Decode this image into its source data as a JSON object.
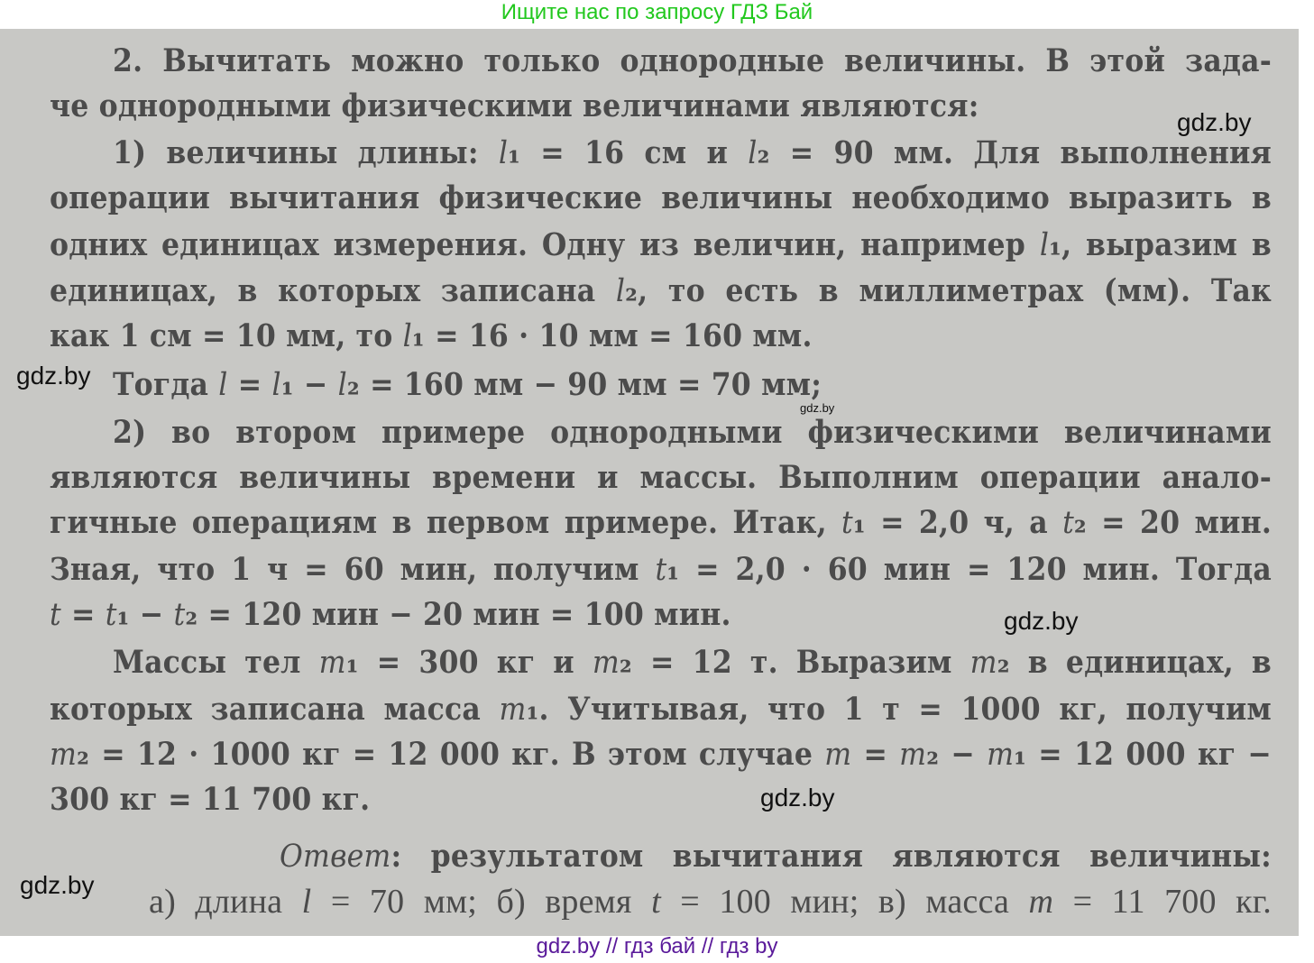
{
  "top_banner": "Ищите нас по запросу ГДЗ Бай",
  "bottom_banner": "gdz.by  //  гдз бай  //  гдз by",
  "watermark": "gdz.by",
  "lines": [
    [
      {
        "t": "2. Вычитать можно только однородные величины. В этой зада-"
      }
    ],
    [
      {
        "t": "че однородными физическими величинами являются:"
      }
    ],
    [
      {
        "t": "1) величины длины: "
      },
      {
        "t": "l",
        "i": 1
      },
      {
        "t": "₁ = 16 см и "
      },
      {
        "t": "l",
        "i": 1
      },
      {
        "t": "₂ = 90 мм. Для выполнения"
      }
    ],
    [
      {
        "t": "операции вычитания физические величины необходимо выразить в"
      }
    ],
    [
      {
        "t": "одних единицах измерения. Одну из величин, например "
      },
      {
        "t": "l",
        "i": 1
      },
      {
        "t": "₁, выразим в"
      }
    ],
    [
      {
        "t": "единицах, в которых записана "
      },
      {
        "t": "l",
        "i": 1
      },
      {
        "t": "₂, то есть в миллиметрах (мм). Так"
      }
    ],
    [
      {
        "t": "как 1 см = 10 мм, то "
      },
      {
        "t": "l",
        "i": 1
      },
      {
        "t": "₁ = 16 · 10 мм = 160 мм."
      }
    ],
    [
      {
        "t": "Тогда "
      },
      {
        "t": "l",
        "i": 1
      },
      {
        "t": " = "
      },
      {
        "t": "l",
        "i": 1
      },
      {
        "t": "₁ − "
      },
      {
        "t": "l",
        "i": 1
      },
      {
        "t": "₂ = 160 мм − 90 мм = 70 мм;"
      }
    ],
    [
      {
        "t": "2) во втором примере однородными физическими величинами"
      }
    ],
    [
      {
        "t": "являются величины времени и массы. Выполним операции анало-"
      }
    ],
    [
      {
        "t": "гичные операциям в первом примере. Итак, "
      },
      {
        "t": "t",
        "i": 1
      },
      {
        "t": "₁ = 2,0 ч, а "
      },
      {
        "t": "t",
        "i": 1
      },
      {
        "t": "₂ = 20 мин."
      }
    ],
    [
      {
        "t": "Зная, что 1 ч = 60 мин, получим "
      },
      {
        "t": "t",
        "i": 1
      },
      {
        "t": "₁ = 2,0 · 60 мин = 120 мин. Тогда"
      }
    ],
    [
      {
        "t": "t",
        "i": 1
      },
      {
        "t": " = "
      },
      {
        "t": "t",
        "i": 1
      },
      {
        "t": "₁ − "
      },
      {
        "t": "t",
        "i": 1
      },
      {
        "t": "₂ = 120 мин − 20 мин = 100 мин."
      }
    ],
    [
      {
        "t": "Массы тел "
      },
      {
        "t": "m",
        "i": 1
      },
      {
        "t": "₁ = 300 кг и "
      },
      {
        "t": "m",
        "i": 1
      },
      {
        "t": "₂ = 12 т. Выразим "
      },
      {
        "t": "m",
        "i": 1
      },
      {
        "t": "₂ в единицах, в"
      }
    ],
    [
      {
        "t": "которых записана масса "
      },
      {
        "t": "m",
        "i": 1
      },
      {
        "t": "₁. Учитывая, что 1 т = 1000 кг, получим"
      }
    ],
    [
      {
        "t": "m",
        "i": 1
      },
      {
        "t": "₂ = 12 · 1000 кг = 12 000 кг. В этом случае "
      },
      {
        "t": "m",
        "i": 1
      },
      {
        "t": " = "
      },
      {
        "t": "m",
        "i": 1
      },
      {
        "t": "₂ − "
      },
      {
        "t": "m",
        "i": 1
      },
      {
        "t": "₁ = 12 000 кг −"
      }
    ],
    [
      {
        "t": "300 кг = 11 700 кг."
      }
    ],
    [
      {
        "t": "Ответ",
        "i": 1
      },
      {
        "t": ": результатом вычитания являются величины:"
      }
    ],
    [
      {
        "t": "а) длина "
      },
      {
        "t": "l",
        "i": 1
      },
      {
        "t": " = 70 мм; б) время "
      },
      {
        "t": "t",
        "i": 1
      },
      {
        "t": " = 100 мин; в) масса "
      },
      {
        "t": "m",
        "i": 1
      },
      {
        "t": " = 11 700 кг."
      }
    ]
  ]
}
